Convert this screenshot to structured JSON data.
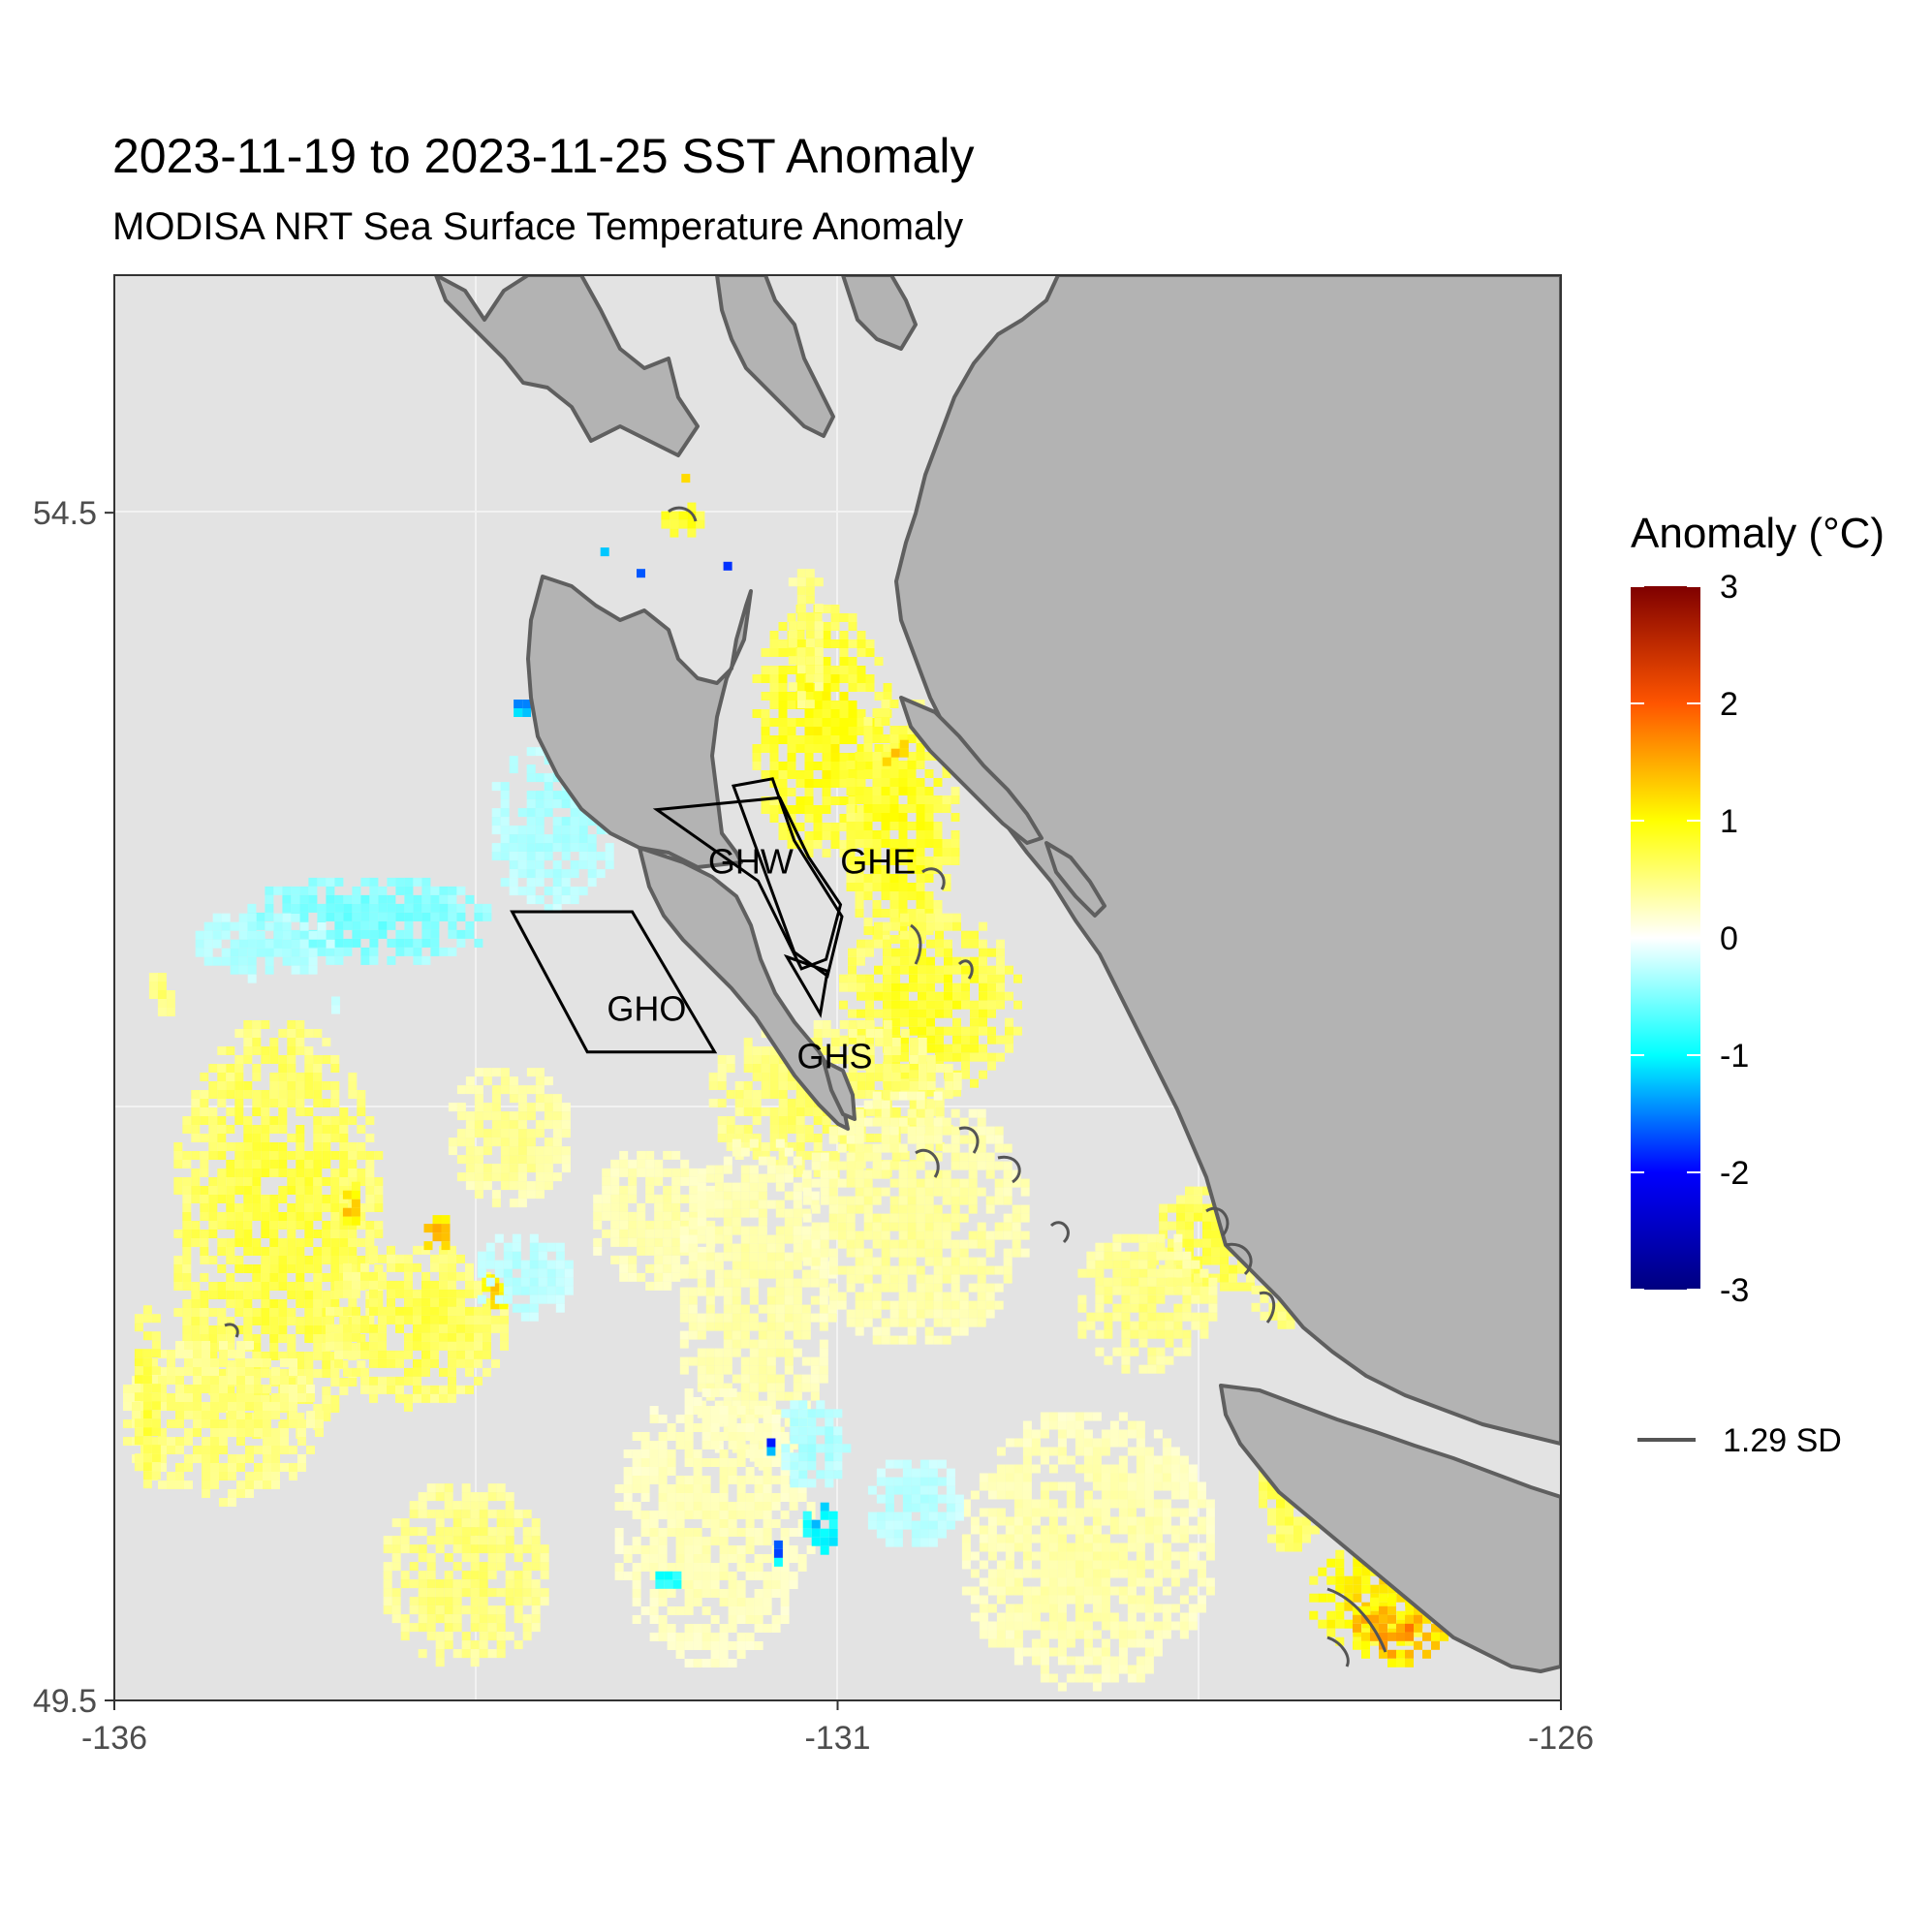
{
  "title": "2023-11-19 to 2023-11-25 SST Anomaly",
  "subtitle": "MODISA NRT Sea Surface Temperature Anomaly",
  "chart_data": {
    "type": "heatmap",
    "xlim": [
      -136,
      -126
    ],
    "ylim": [
      49.5,
      55.5
    ],
    "x_ticks": [
      "-136",
      "-131",
      "-126"
    ],
    "x_tick_values": [
      -136,
      -131,
      -126
    ],
    "y_ticks": [
      "54.5",
      "49.5"
    ],
    "y_tick_values": [
      54.5,
      49.5
    ],
    "grid": true,
    "colors": {
      "panel_background": "#e3e3e3",
      "land": "#b3b3b3",
      "coastline": "#5f5f5f",
      "contour": "#555555",
      "region_outline": "#000000"
    },
    "legend": {
      "title": "Anomaly (°C)",
      "position": "right",
      "ticks": [
        "3",
        "2",
        "1",
        "0",
        "-1",
        "-2",
        "-3"
      ],
      "tick_values": [
        3,
        2,
        1,
        0,
        -1,
        -2,
        -3
      ],
      "color_stops": [
        {
          "value": -3,
          "color": "#00007f"
        },
        {
          "value": -2,
          "color": "#0000ff"
        },
        {
          "value": -1,
          "color": "#00ffff"
        },
        {
          "value": 0,
          "color": "#ffffff"
        },
        {
          "value": 1,
          "color": "#ffff00"
        },
        {
          "value": 2,
          "color": "#ff5500"
        },
        {
          "value": 3,
          "color": "#7f0000"
        }
      ],
      "contour_label": "1.29 SD"
    },
    "regions": [
      {
        "name": "GHW",
        "label_lon": -131.6,
        "label_lat": 53.02,
        "polygon": [
          [
            -132.25,
            53.25
          ],
          [
            -131.4,
            53.3
          ],
          [
            -131.2,
            53.05
          ],
          [
            -130.98,
            52.85
          ],
          [
            -131.08,
            52.62
          ],
          [
            -131.25,
            52.58
          ],
          [
            -131.55,
            52.95
          ],
          [
            -132.25,
            53.25
          ]
        ]
      },
      {
        "name": "GHE",
        "label_lon": -130.72,
        "label_lat": 53.02,
        "polygon": [
          [
            -131.72,
            53.35
          ],
          [
            -131.45,
            53.38
          ],
          [
            -131.3,
            53.12
          ],
          [
            -130.97,
            52.8
          ],
          [
            -131.07,
            52.55
          ],
          [
            -131.3,
            52.65
          ],
          [
            -131.72,
            53.35
          ]
        ]
      },
      {
        "name": "GHO",
        "label_lon": -132.32,
        "label_lat": 52.4,
        "polygon": [
          [
            -133.25,
            52.82
          ],
          [
            -132.42,
            52.82
          ],
          [
            -131.85,
            52.23
          ],
          [
            -132.73,
            52.23
          ],
          [
            -133.25,
            52.82
          ]
        ]
      },
      {
        "name": "GHS",
        "label_lon": -131.02,
        "label_lat": 52.2,
        "polygon": [
          [
            -131.35,
            52.63
          ],
          [
            -131.07,
            52.57
          ],
          [
            -131.12,
            52.39
          ],
          [
            -131.35,
            52.63
          ]
        ]
      }
    ],
    "anomaly_patches": [
      {
        "lon": -131.15,
        "lat": 53.6,
        "rlon": 0.5,
        "rlat": 0.55,
        "value": 0.95
      },
      {
        "lon": -130.6,
        "lat": 53.2,
        "rlon": 0.4,
        "rlat": 0.55,
        "value": 0.9
      },
      {
        "lon": -130.4,
        "lat": 52.45,
        "rlon": 0.65,
        "rlat": 0.4,
        "value": 0.85
      },
      {
        "lon": -131.05,
        "lat": 52.05,
        "rlon": 0.9,
        "rlat": 0.35,
        "value": 0.6
      },
      {
        "lon": -131.25,
        "lat": 54.0,
        "rlon": 0.15,
        "rlat": 0.3,
        "value": 0.6
      },
      {
        "lon": -130.2,
        "lat": 53.95,
        "rlon": 0.25,
        "rlat": 0.12,
        "value": 0.7
      },
      {
        "lon": -132.1,
        "lat": 54.5,
        "rlon": 0.18,
        "rlat": 0.08,
        "value": 0.9
      },
      {
        "lon": -132.1,
        "lat": 54.67,
        "rlon": 0.04,
        "rlat": 0.03,
        "value": 1.5
      },
      {
        "lon": -130.65,
        "lat": 53.52,
        "rlon": 0.1,
        "rlat": 0.06,
        "value": 1.5
      },
      {
        "lon": -134.9,
        "lat": 51.5,
        "rlon": 0.75,
        "rlat": 0.9,
        "value": 0.75
      },
      {
        "lon": -135.3,
        "lat": 50.7,
        "rlon": 0.7,
        "rlat": 0.35,
        "value": 0.55
      },
      {
        "lon": -134.4,
        "lat": 51.6,
        "rlon": 0.08,
        "rlat": 0.12,
        "value": 1.3
      },
      {
        "lon": -133.95,
        "lat": 51.1,
        "rlon": 0.65,
        "rlat": 0.35,
        "value": 0.7
      },
      {
        "lon": -133.8,
        "lat": 51.5,
        "rlon": 0.12,
        "rlat": 0.08,
        "value": 1.45
      },
      {
        "lon": -133.4,
        "lat": 51.25,
        "rlon": 0.12,
        "rlat": 0.08,
        "value": 1.35
      },
      {
        "lon": -133.6,
        "lat": 50.05,
        "rlon": 0.6,
        "rlat": 0.4,
        "value": 0.55
      },
      {
        "lon": -133.3,
        "lat": 51.9,
        "rlon": 0.45,
        "rlat": 0.3,
        "value": 0.45
      },
      {
        "lon": -132.3,
        "lat": 51.55,
        "rlon": 0.45,
        "rlat": 0.3,
        "value": 0.35
      },
      {
        "lon": -131.6,
        "lat": 51.2,
        "rlon": 0.55,
        "rlat": 0.7,
        "value": 0.35
      },
      {
        "lon": -130.5,
        "lat": 51.55,
        "rlon": 0.8,
        "rlat": 0.55,
        "value": 0.4
      },
      {
        "lon": -129.3,
        "lat": 50.15,
        "rlon": 0.9,
        "rlat": 0.6,
        "value": 0.35
      },
      {
        "lon": -131.9,
        "lat": 50.25,
        "rlon": 0.7,
        "rlat": 0.6,
        "value": 0.3
      },
      {
        "lon": -128.2,
        "lat": 51.8,
        "rlon": 0.25,
        "rlat": 0.45,
        "value": 1.05
      },
      {
        "lon": -128.15,
        "lat": 51.8,
        "rlon": 0.12,
        "rlat": 0.2,
        "value": 1.4
      },
      {
        "lon": -128.45,
        "lat": 51.45,
        "rlon": 0.45,
        "rlat": 0.25,
        "value": 0.75
      },
      {
        "lon": -127.75,
        "lat": 51.2,
        "rlon": 0.45,
        "rlat": 0.12,
        "value": 0.65
      },
      {
        "lon": -127.3,
        "lat": 49.95,
        "rlon": 0.5,
        "rlat": 0.22,
        "value": 1.15
      },
      {
        "lon": -127.15,
        "lat": 49.82,
        "rlon": 0.35,
        "rlat": 0.15,
        "value": 1.6
      },
      {
        "lon": -127.9,
        "lat": 50.45,
        "rlon": 0.25,
        "rlat": 0.3,
        "value": 0.75
      },
      {
        "lon": -128.9,
        "lat": 51.2,
        "rlon": 0.5,
        "rlat": 0.3,
        "value": 0.5
      },
      {
        "lon": -133.0,
        "lat": 53.2,
        "rlon": 0.45,
        "rlat": 0.35,
        "value": -0.35
      },
      {
        "lon": -134.3,
        "lat": 52.8,
        "rlon": 0.9,
        "rlat": 0.2,
        "value": -0.55
      },
      {
        "lon": -135.0,
        "lat": 52.7,
        "rlon": 0.5,
        "rlat": 0.15,
        "value": -0.35
      },
      {
        "lon": -133.2,
        "lat": 51.3,
        "rlon": 0.35,
        "rlat": 0.2,
        "value": -0.3
      },
      {
        "lon": -131.2,
        "lat": 50.6,
        "rlon": 0.25,
        "rlat": 0.2,
        "value": -0.35
      },
      {
        "lon": -130.5,
        "lat": 50.35,
        "rlon": 0.35,
        "rlat": 0.2,
        "value": -0.3
      },
      {
        "lon": -131.15,
        "lat": 50.25,
        "rlon": 0.15,
        "rlat": 0.12,
        "value": -1.2
      },
      {
        "lon": -131.5,
        "lat": 50.6,
        "rlon": 0.05,
        "rlat": 0.04,
        "value": -2.2
      },
      {
        "lon": -131.45,
        "lat": 50.15,
        "rlon": 0.05,
        "rlat": 0.06,
        "value": -1.6
      },
      {
        "lon": -133.2,
        "lat": 53.7,
        "rlon": 0.1,
        "rlat": 0.05,
        "value": -1.5
      },
      {
        "lon": -132.6,
        "lat": 53.5,
        "rlon": 0.05,
        "rlat": 0.05,
        "value": -0.9
      },
      {
        "lon": -132.65,
        "lat": 54.35,
        "rlon": 0.05,
        "rlat": 0.04,
        "value": -1.3
      },
      {
        "lon": -132.4,
        "lat": 54.27,
        "rlon": 0.05,
        "rlat": 0.03,
        "value": -1.8
      },
      {
        "lon": -131.8,
        "lat": 54.3,
        "rlon": 0.05,
        "rlat": 0.03,
        "value": -2.0
      },
      {
        "lon": -132.2,
        "lat": 50.03,
        "rlon": 0.12,
        "rlat": 0.05,
        "value": -1.0
      },
      {
        "lon": -134.5,
        "lat": 52.45,
        "rlon": 0.06,
        "rlat": 0.05,
        "value": -0.2
      },
      {
        "lon": -135.7,
        "lat": 52.5,
        "rlon": 0.12,
        "rlat": 0.1,
        "value": 0.55
      },
      {
        "lon": -135.8,
        "lat": 50.8,
        "rlon": 0.12,
        "rlat": 0.4,
        "value": 0.75
      }
    ]
  }
}
